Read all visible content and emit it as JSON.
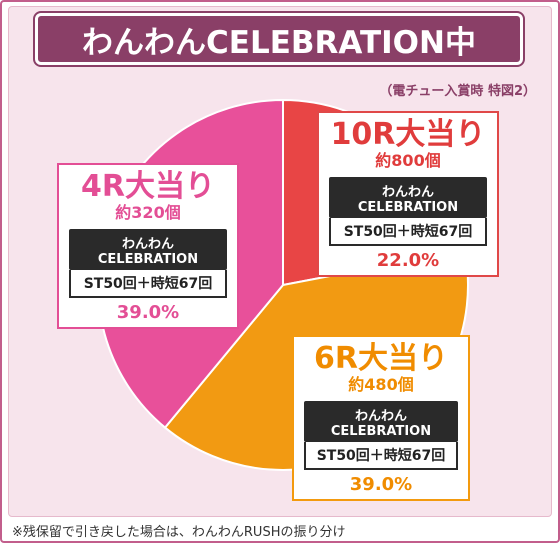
{
  "title": "わんわんCELEBRATION中",
  "subnote": "（電チュー入賞時 特図2）",
  "footer": "※残保留で引き戻した場合は、わんわんRUSHの振り分け",
  "colors": {
    "slice_10r": "#e84545",
    "slice_6r": "#f29a12",
    "slice_4r": "#e8509a",
    "title_bg": "#8a3f67"
  },
  "chart_data": {
    "type": "pie",
    "title": "わんわんCELEBRATION中",
    "subtitle": "（電チュー入賞時 特図2）",
    "slices": [
      {
        "label": "10R大当り",
        "count": "約800個",
        "mode": "わんわんCELEBRATION",
        "st": "ST50回＋時短67回",
        "value": 22.0,
        "value_label": "22.0%",
        "color": "#e84545"
      },
      {
        "label": "6R大当り",
        "count": "約480個",
        "mode": "わんわんCELEBRATION",
        "st": "ST50回＋時短67回",
        "value": 39.0,
        "value_label": "39.0%",
        "color": "#f29a12"
      },
      {
        "label": "4R大当り",
        "count": "約320個",
        "mode": "わんわんCELEBRATION",
        "st": "ST50回＋時短67回",
        "value": 39.0,
        "value_label": "39.0%",
        "color": "#e8509a"
      }
    ]
  }
}
